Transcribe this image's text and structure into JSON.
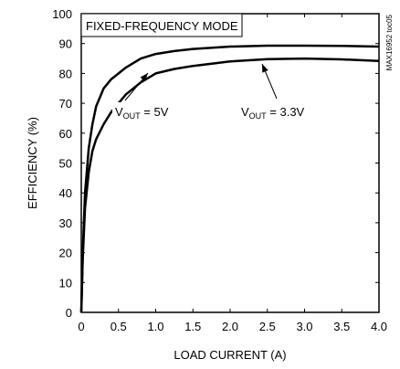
{
  "chart_data": {
    "type": "line",
    "title": "",
    "annotation_box": "FIXED-FREQUENCY MODE",
    "side_label": "MAX16952 toc05",
    "xlabel": "LOAD CURRENT (A)",
    "ylabel": "EFFICIENCY (%)",
    "xlim": [
      0,
      4.0
    ],
    "ylim": [
      0,
      100
    ],
    "x_ticks": [
      0,
      0.5,
      1.0,
      1.5,
      2.0,
      2.5,
      3.0,
      3.5,
      4.0
    ],
    "x_tick_labels": [
      "0",
      "0.5",
      "1.0",
      "1.5",
      "2.0",
      "2.5",
      "3.0",
      "3.5",
      "4.0"
    ],
    "y_ticks": [
      0,
      10,
      20,
      30,
      40,
      50,
      60,
      70,
      80,
      90,
      100
    ],
    "y_tick_labels": [
      "0",
      "10",
      "20",
      "30",
      "40",
      "50",
      "60",
      "70",
      "80",
      "90",
      "100"
    ],
    "grid": false,
    "series": [
      {
        "name": "VOUT = 5V",
        "label_main": "V",
        "label_sub": "OUT",
        "label_rest": " = 5V",
        "x": [
          0.0,
          0.02,
          0.05,
          0.1,
          0.15,
          0.2,
          0.3,
          0.4,
          0.5,
          0.6,
          0.8,
          1.0,
          1.25,
          1.5,
          2.0,
          2.5,
          3.0,
          3.5,
          4.0
        ],
        "y": [
          0,
          20,
          40,
          55,
          63,
          69,
          75,
          78,
          80,
          82,
          85,
          86.5,
          87.5,
          88.2,
          89,
          89.3,
          89.3,
          89.2,
          89
        ]
      },
      {
        "name": "VOUT = 3.3V",
        "label_main": "V",
        "label_sub": "OUT",
        "label_rest": " = 3.3V",
        "x": [
          0.0,
          0.02,
          0.05,
          0.1,
          0.15,
          0.2,
          0.3,
          0.4,
          0.5,
          0.6,
          0.8,
          1.0,
          1.25,
          1.5,
          2.0,
          2.5,
          3.0,
          3.5,
          4.0
        ],
        "y": [
          0,
          18,
          35,
          47,
          54,
          58,
          63,
          67,
          70,
          73,
          77,
          80,
          81.5,
          82.5,
          84,
          84.8,
          85,
          84.7,
          84.2
        ]
      }
    ]
  }
}
